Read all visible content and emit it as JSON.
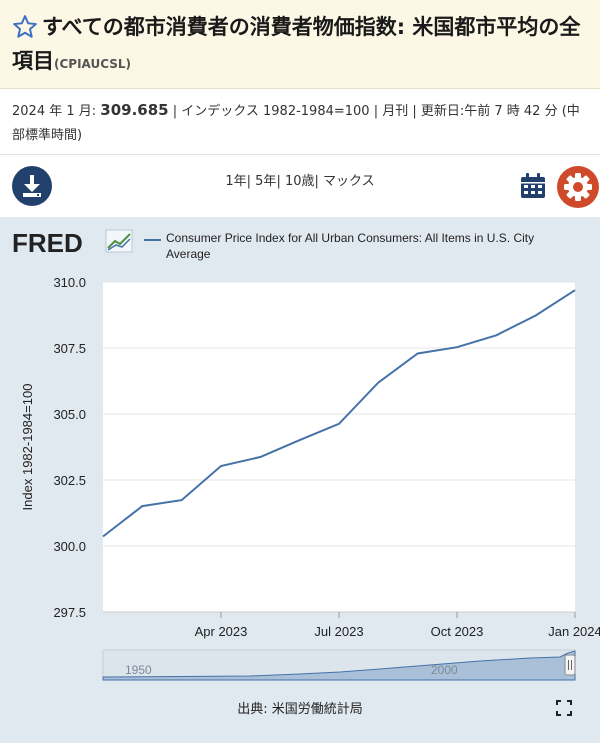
{
  "header": {
    "title": "すべての都市消費者の消費者物価指数: 米国都市平均の全項目",
    "code": "(CPIAUCSL)"
  },
  "meta": {
    "period": "2024 年 1 月:",
    "value": "309.685",
    "rest": "| インデックス 1982-1984=100 | 月刊 | 更新日:午前 7 時 42 分 (中部標準時間)"
  },
  "toolbar": {
    "periods": [
      "1年",
      "5年",
      "10歳",
      "マックス"
    ],
    "separator": "| "
  },
  "fred": {
    "logo": "FRED"
  },
  "icons": {
    "star": "star-outline-icon",
    "download": "download-icon",
    "calendar": "calendar-icon",
    "settings": "gear-icon",
    "fullscreen": "fullscreen-icon",
    "fred_graph": "fred-graph-icon"
  },
  "colors": {
    "line": "#4572a7",
    "header_bg": "#fdf8e6",
    "chart_bg": "#e1e9f0",
    "download_btn": "#21406c",
    "settings_btn": "#cf4a2b",
    "calendar": "#21406c",
    "title_star": "#3a6fc4"
  },
  "chart_data": {
    "type": "line",
    "legend": "Consumer Price Index for All Urban Consumers: All Items in U.S. City Average",
    "ylabel": "Index 1982-1984=100",
    "ylim": [
      297.5,
      310.0
    ],
    "yticks": [
      "297.5",
      "300.0",
      "302.5",
      "305.0",
      "307.5",
      "310.0"
    ],
    "xlim": [
      "2023-01",
      "2024-01"
    ],
    "xticks": [
      {
        "label": "Apr 2023",
        "x": "2023-04"
      },
      {
        "label": "Jul 2023",
        "x": "2023-07"
      },
      {
        "label": "Oct 2023",
        "x": "2023-10"
      },
      {
        "label": "Jan 2024",
        "x": "2024-01"
      }
    ],
    "grid": true,
    "series": [
      {
        "x": [
          "2023-01",
          "2023-02",
          "2023-03",
          "2023-04",
          "2023-05",
          "2023-06",
          "2023-07",
          "2023-08",
          "2023-09",
          "2023-10",
          "2023-11",
          "2023-12",
          "2024-01"
        ],
        "values": [
          300.36,
          301.51,
          301.74,
          303.03,
          303.37,
          304.01,
          304.63,
          306.19,
          307.29,
          307.53,
          307.98,
          308.73,
          309.69
        ]
      }
    ],
    "navigator": {
      "labels": [
        "1950",
        "2000"
      ]
    },
    "source": "出典: 米国労働統計局"
  }
}
